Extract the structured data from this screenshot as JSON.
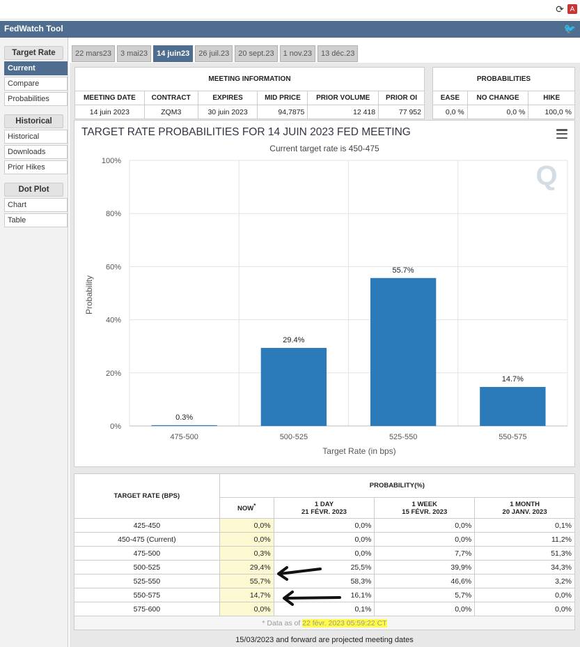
{
  "browser": {
    "icons": [
      "reload-icon",
      "pdf-icon"
    ]
  },
  "app": {
    "title": "FedWatch Tool",
    "social_icon": "twitter-icon"
  },
  "sidebar": {
    "sections": [
      {
        "heading": "Target Rate",
        "items": [
          "Current",
          "Compare",
          "Probabilities"
        ]
      },
      {
        "heading": "Historical",
        "items": [
          "Historical",
          "Downloads",
          "Prior Hikes"
        ]
      },
      {
        "heading": "Dot Plot",
        "items": [
          "Chart",
          "Table"
        ]
      }
    ],
    "active_item": "Current"
  },
  "tabs": [
    "22 mars23",
    "3 mai23",
    "14 juin23",
    "26 juil.23",
    "20 sept.23",
    "1 nov.23",
    "13 déc.23"
  ],
  "active_tab": "14 juin23",
  "meeting_info": {
    "title": "MEETING INFORMATION",
    "headers": [
      "MEETING DATE",
      "CONTRACT",
      "EXPIRES",
      "MID PRICE",
      "PRIOR VOLUME",
      "PRIOR OI"
    ],
    "values": [
      "14 juin 2023",
      "ZQM3",
      "30 juin 2023",
      "94,7875",
      "12 418",
      "77 952"
    ]
  },
  "probabilities": {
    "title": "PROBABILITIES",
    "headers": [
      "EASE",
      "NO CHANGE",
      "HIKE"
    ],
    "values": [
      "0,0 %",
      "0,0 %",
      "100,0 %"
    ]
  },
  "chart_data": {
    "type": "bar",
    "title": "TARGET RATE PROBABILITIES FOR 14 JUIN 2023 FED MEETING",
    "subtitle": "Current target rate is 450-475",
    "xlabel": "Target Rate (in bps)",
    "ylabel": "Probability",
    "categories": [
      "475-500",
      "500-525",
      "525-550",
      "550-575"
    ],
    "values": [
      0.3,
      29.4,
      55.7,
      14.7
    ],
    "data_labels": [
      "0.3%",
      "29.4%",
      "55.7%",
      "14.7%"
    ],
    "ylim": [
      0,
      100
    ],
    "yticks": [
      "0%",
      "20%",
      "40%",
      "60%",
      "80%",
      "100%"
    ],
    "grid": true,
    "bar_color": "#2b7bba"
  },
  "table": {
    "row_header": "TARGET RATE (BPS)",
    "group_header": "PROBABILITY(%)",
    "columns": [
      {
        "label": "NOW",
        "sup": "*",
        "sub": ""
      },
      {
        "label": "1 DAY",
        "sub": "21 FÉVR. 2023"
      },
      {
        "label": "1 WEEK",
        "sub": "15 FÉVR. 2023"
      },
      {
        "label": "1 MONTH",
        "sub": "20 JANV. 2023"
      }
    ],
    "rows": [
      {
        "rate": "425-450",
        "values": [
          "0,0%",
          "0,0%",
          "0,0%",
          "0,1%"
        ]
      },
      {
        "rate": "450-475 (Current)",
        "values": [
          "0,0%",
          "0,0%",
          "0,0%",
          "11,2%"
        ]
      },
      {
        "rate": "475-500",
        "values": [
          "0,3%",
          "0,0%",
          "7,7%",
          "51,3%"
        ]
      },
      {
        "rate": "500-525",
        "values": [
          "29,4%",
          "25,5%",
          "39,9%",
          "34,3%"
        ]
      },
      {
        "rate": "525-550",
        "values": [
          "55,7%",
          "58,3%",
          "46,6%",
          "3,2%"
        ]
      },
      {
        "rate": "550-575",
        "values": [
          "14,7%",
          "16,1%",
          "5,7%",
          "0,0%"
        ]
      },
      {
        "rate": "575-600",
        "values": [
          "0,0%",
          "0,1%",
          "0,0%",
          "0,0%"
        ]
      }
    ],
    "as_of_prefix": "* Data as of ",
    "as_of_value": "22 févr. 2023 05:59:22 CT"
  },
  "footnote": "15/03/2023 and forward are projected meeting dates",
  "annotation_color": "#fffb46"
}
